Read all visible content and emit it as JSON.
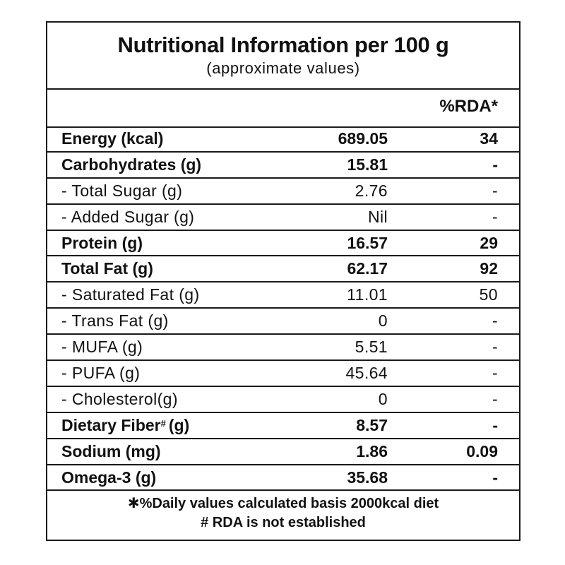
{
  "header": {
    "title": "Nutritional Information per 100 g",
    "subtitle": "(approximate values)"
  },
  "column_header": {
    "rda": "%RDA*"
  },
  "rows": [
    {
      "name": "Energy (kcal)",
      "value": "689.05",
      "rda": "34",
      "style": "bold"
    },
    {
      "name": "Carbohydrates (g)",
      "value": "15.81",
      "rda": "-",
      "style": "bold"
    },
    {
      "name": "- Total Sugar (g)",
      "value": "2.76",
      "rda": "-",
      "style": "sub"
    },
    {
      "name": "- Added Sugar (g)",
      "value": "Nil",
      "rda": "-",
      "style": "sub"
    },
    {
      "name": "Protein (g)",
      "value": "16.57",
      "rda": "29",
      "style": "bold"
    },
    {
      "name": "Total Fat (g)",
      "value": "62.17",
      "rda": "92",
      "style": "bold"
    },
    {
      "name": "- Saturated Fat (g)",
      "value": "11.01",
      "rda": "50",
      "style": "sub"
    },
    {
      "name": "- Trans Fat (g)",
      "value": "0",
      "rda": "-",
      "style": "sub"
    },
    {
      "name": "- MUFA (g)",
      "value": "5.51",
      "rda": "-",
      "style": "sub"
    },
    {
      "name": "- PUFA (g)",
      "value": "45.64",
      "rda": "-",
      "style": "sub"
    },
    {
      "name": "- Cholesterol(g)",
      "value": "0",
      "rda": "-",
      "style": "sub"
    },
    {
      "name": "Dietary Fiber",
      "name_mark": "#",
      "name_suffix": "(g)",
      "value": "8.57",
      "rda": "-",
      "style": "bold"
    },
    {
      "name": "Sodium (mg)",
      "value": "1.86",
      "rda": "0.09",
      "style": "bold"
    },
    {
      "name": "Omega-3 (g)",
      "value": "35.68",
      "rda": "-",
      "style": "bold"
    }
  ],
  "footer": {
    "note1": "✱%Daily values calculated basis 2000kcal diet",
    "note2": "# RDA is not established"
  }
}
